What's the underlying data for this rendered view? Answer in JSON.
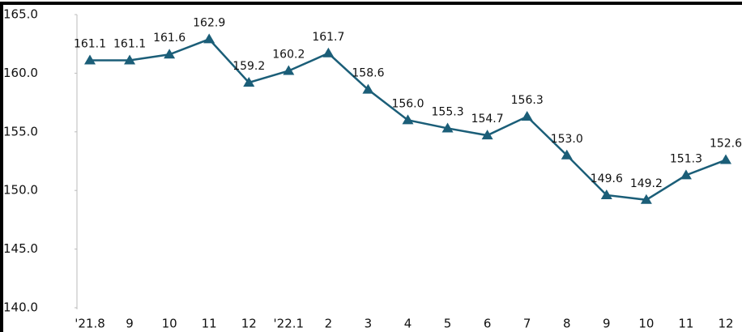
{
  "chart_data": {
    "type": "line",
    "categories": [
      "'21.8",
      "9",
      "10",
      "11",
      "12",
      "'22.1",
      "2",
      "3",
      "4",
      "5",
      "6",
      "7",
      "8",
      "9",
      "10",
      "11",
      "12"
    ],
    "values": [
      161.1,
      161.1,
      161.6,
      162.9,
      159.2,
      160.2,
      161.7,
      158.6,
      156.0,
      155.3,
      154.7,
      156.3,
      153.0,
      149.6,
      149.2,
      151.3,
      152.6
    ],
    "value_labels": [
      "161.1",
      "161.1",
      "161.6",
      "162.9",
      "159.2",
      "160.2",
      "161.7",
      "158.6",
      "156.0",
      "155.3",
      "154.7",
      "156.3",
      "153.0",
      "149.6",
      "149.2",
      "151.3",
      "152.6"
    ],
    "color": "#1b5e78",
    "ylim": [
      140,
      165
    ],
    "yticks": [
      {
        "value": 140,
        "label": "140.0"
      },
      {
        "value": 145,
        "label": "145.0"
      },
      {
        "value": 150,
        "label": "150.0"
      },
      {
        "value": 155,
        "label": "155.0"
      },
      {
        "value": 160,
        "label": "160.0"
      },
      {
        "value": 165,
        "label": "165.0"
      }
    ],
    "marker": "triangle"
  }
}
